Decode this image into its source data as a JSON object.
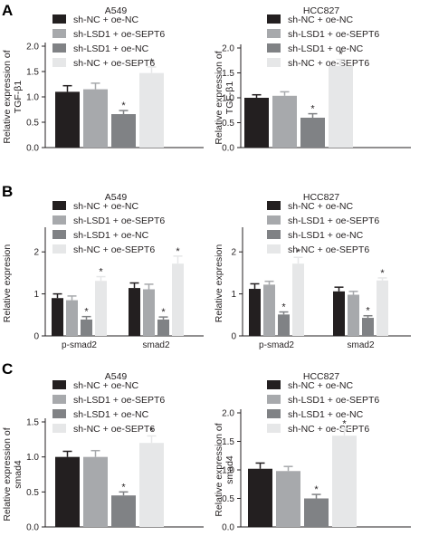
{
  "panel_letters": [
    "A",
    "B",
    "C"
  ],
  "legend_colors": [
    "#231f20",
    "#a7a9ac",
    "#808285",
    "#e6e7e8"
  ],
  "chart_data": [
    {
      "panel": "A",
      "type": "bar",
      "title": "A549",
      "ylabel": [
        "Relative expression of",
        "TGF-β1"
      ],
      "categories": [
        ""
      ],
      "ylim": [
        0,
        2.0
      ],
      "yticks": [
        "0.0",
        "0.5",
        "1.0",
        "1.5",
        "2.0"
      ],
      "ytick_values": [
        0,
        0.5,
        1.0,
        1.5,
        2.0
      ],
      "legend_position": "top",
      "series": [
        {
          "name": "sh-NC + oe-NC",
          "values": [
            1.1
          ],
          "errors": [
            0.12
          ],
          "marks": [
            ""
          ]
        },
        {
          "name": "sh-LSD1 + oe-SEPT6",
          "values": [
            1.15
          ],
          "errors": [
            0.12
          ],
          "marks": [
            ""
          ]
        },
        {
          "name": "sh-LSD1 + oe-NC",
          "values": [
            0.66
          ],
          "errors": [
            0.07
          ],
          "marks": [
            "*"
          ]
        },
        {
          "name": "sh-NC + oe-SEPT6",
          "values": [
            1.47
          ],
          "errors": [
            0.12
          ],
          "marks": [
            "*"
          ]
        }
      ]
    },
    {
      "panel": "A",
      "type": "bar",
      "title": "HCC827",
      "ylabel": [
        "Relative expression of",
        "TGF-β1"
      ],
      "categories": [
        ""
      ],
      "ylim": [
        0,
        2.0
      ],
      "yticks": [
        "0.0",
        "0.5",
        "1.0",
        "1.5",
        "2.0"
      ],
      "ytick_values": [
        0,
        0.5,
        1.0,
        1.5,
        2.0
      ],
      "legend_position": "top",
      "series": [
        {
          "name": "sh-NC + oe-NC",
          "values": [
            1.0
          ],
          "errors": [
            0.06
          ],
          "marks": [
            ""
          ]
        },
        {
          "name": "sh-LSD1 + oe-SEPT6",
          "values": [
            1.04
          ],
          "errors": [
            0.08
          ],
          "marks": [
            ""
          ]
        },
        {
          "name": "sh-LSD1 + oe-NC",
          "values": [
            0.6
          ],
          "errors": [
            0.08
          ],
          "marks": [
            "*"
          ]
        },
        {
          "name": "sh-NC + oe-SEPT6",
          "values": [
            1.64
          ],
          "errors": [
            0.13
          ],
          "marks": [
            "*"
          ]
        }
      ]
    },
    {
      "panel": "B",
      "type": "bar",
      "title": "A549",
      "ylabel": [
        "Relative expresion"
      ],
      "categories": [
        "p-smad2",
        "smad2"
      ],
      "ylim": [
        0,
        2.5
      ],
      "yticks": [
        "0",
        "1",
        "2"
      ],
      "ytick_values": [
        0,
        1,
        2
      ],
      "legend_position": "top",
      "series": [
        {
          "name": "sh-NC + oe-NC",
          "values": [
            0.9,
            1.14
          ],
          "errors": [
            0.1,
            0.12
          ],
          "marks": [
            "",
            ""
          ]
        },
        {
          "name": "sh-LSD1 + oe-SEPT6",
          "values": [
            0.85,
            1.11
          ],
          "errors": [
            0.1,
            0.12
          ],
          "marks": [
            "",
            ""
          ]
        },
        {
          "name": "sh-LSD1 + oe-NC",
          "values": [
            0.39,
            0.39
          ],
          "errors": [
            0.07,
            0.06
          ],
          "marks": [
            "*",
            "*"
          ]
        },
        {
          "name": "sh-NC + oe-SEPT6",
          "values": [
            1.31,
            1.72
          ],
          "errors": [
            0.1,
            0.18
          ],
          "marks": [
            "*",
            "*"
          ]
        }
      ]
    },
    {
      "panel": "B",
      "type": "bar",
      "title": "HCC827",
      "ylabel": [
        "Relative expresion"
      ],
      "categories": [
        "p-smad2",
        "smad2"
      ],
      "ylim": [
        0,
        2.5
      ],
      "yticks": [
        "0",
        "1",
        "2"
      ],
      "ytick_values": [
        0,
        1,
        2
      ],
      "legend_position": "top",
      "series": [
        {
          "name": "sh-NC + oe-NC",
          "values": [
            1.12,
            1.06
          ],
          "errors": [
            0.12,
            0.1
          ],
          "marks": [
            "",
            ""
          ]
        },
        {
          "name": "sh-LSD1 + oe-SEPT6",
          "values": [
            1.22,
            0.98
          ],
          "errors": [
            0.08,
            0.08
          ],
          "marks": [
            "",
            ""
          ]
        },
        {
          "name": "sh-LSD1 + oe-NC",
          "values": [
            0.51,
            0.43
          ],
          "errors": [
            0.06,
            0.05
          ],
          "marks": [
            "*",
            "*"
          ]
        },
        {
          "name": "sh-NC + oe-SEPT6",
          "values": [
            1.72,
            1.32
          ],
          "errors": [
            0.15,
            0.06
          ],
          "marks": [
            "*",
            "*"
          ]
        }
      ]
    },
    {
      "panel": "C",
      "type": "bar",
      "title": "A549",
      "ylabel": [
        "Relative expression of",
        "smad4"
      ],
      "categories": [
        ""
      ],
      "ylim": [
        0,
        1.5
      ],
      "yticks": [
        "0.0",
        "0.5",
        "1.0",
        "1.5"
      ],
      "ytick_values": [
        0,
        0.5,
        1.0,
        1.5
      ],
      "legend_position": "top",
      "series": [
        {
          "name": "sh-NC + oe-NC",
          "values": [
            1.0
          ],
          "errors": [
            0.08
          ],
          "marks": [
            ""
          ]
        },
        {
          "name": "sh-LSD1 + oe-SEPT6",
          "values": [
            1.0
          ],
          "errors": [
            0.09
          ],
          "marks": [
            ""
          ]
        },
        {
          "name": "sh-LSD1 + oe-NC",
          "values": [
            0.45
          ],
          "errors": [
            0.05
          ],
          "marks": [
            "*"
          ]
        },
        {
          "name": "sh-NC + oe-SEPT6",
          "values": [
            1.2
          ],
          "errors": [
            0.1
          ],
          "marks": [
            "*"
          ]
        }
      ]
    },
    {
      "panel": "C",
      "type": "bar",
      "title": "HCC827",
      "ylabel": [
        "Relative expression of",
        "smad4"
      ],
      "categories": [
        ""
      ],
      "ylim": [
        0,
        2.0
      ],
      "yticks": [
        "0.0",
        "0.5",
        "1.0",
        "1.5",
        "2.0"
      ],
      "ytick_values": [
        0,
        0.5,
        1.0,
        1.5,
        2.0
      ],
      "legend_position": "top",
      "series": [
        {
          "name": "sh-NC + oe-NC",
          "values": [
            1.02
          ],
          "errors": [
            0.1
          ],
          "marks": [
            ""
          ]
        },
        {
          "name": "sh-LSD1 + oe-SEPT6",
          "values": [
            0.98
          ],
          "errors": [
            0.08
          ],
          "marks": [
            ""
          ]
        },
        {
          "name": "sh-LSD1 + oe-NC",
          "values": [
            0.5
          ],
          "errors": [
            0.07
          ],
          "marks": [
            "*"
          ]
        },
        {
          "name": "sh-NC + oe-SEPT6",
          "values": [
            1.6
          ],
          "errors": [
            0.12
          ],
          "marks": [
            "*"
          ]
        }
      ]
    }
  ]
}
